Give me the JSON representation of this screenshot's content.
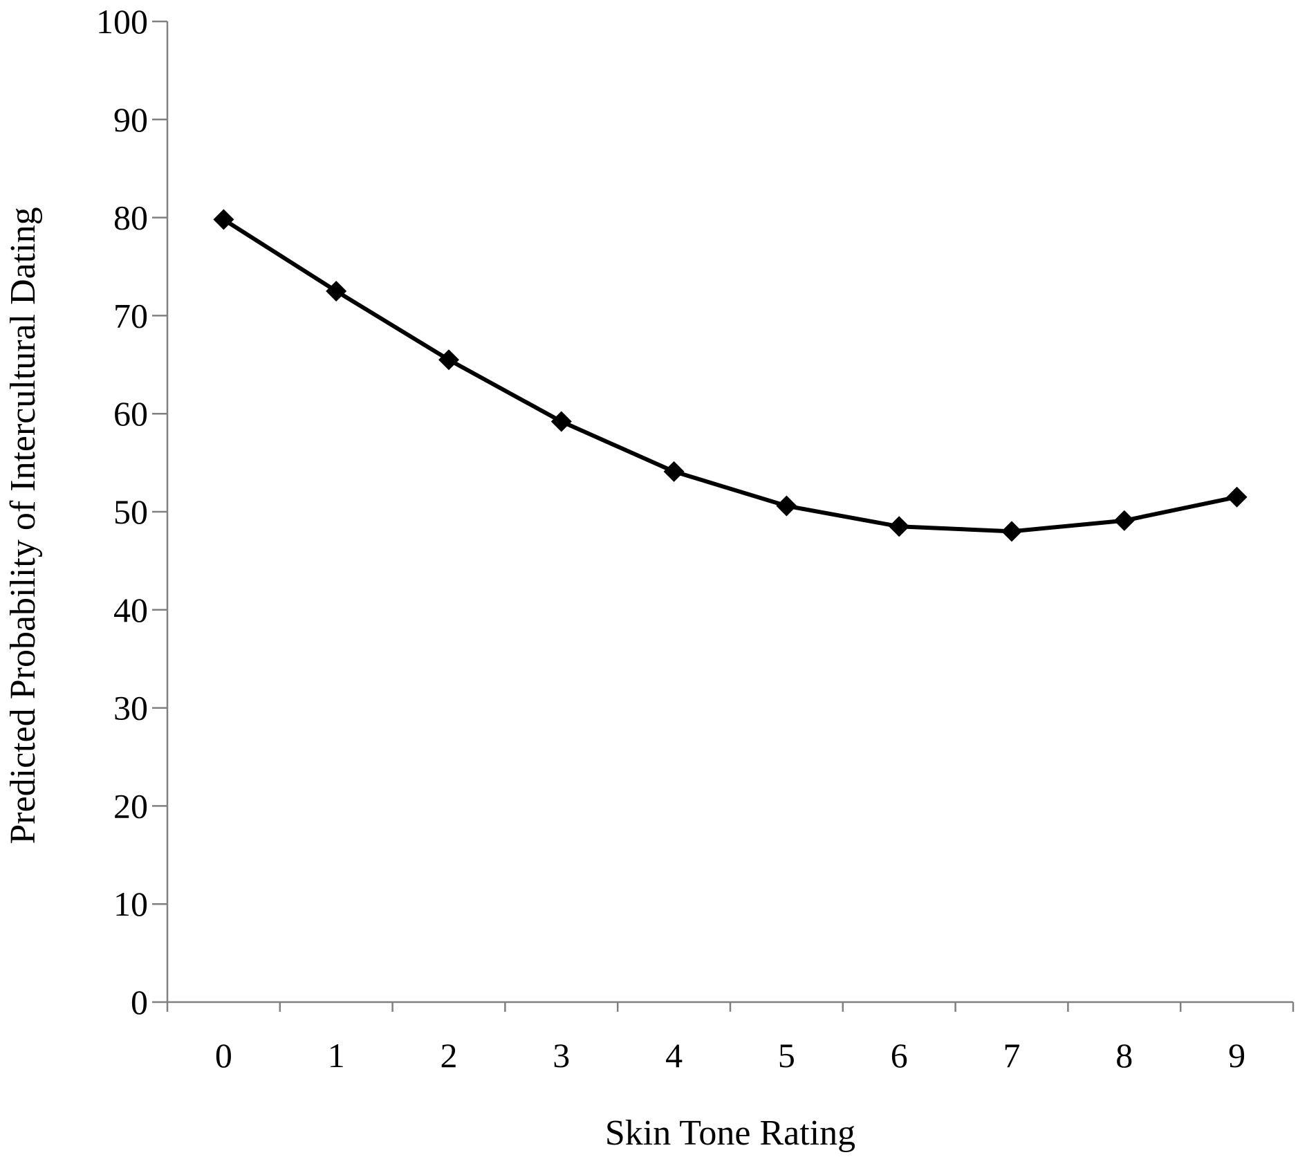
{
  "chart_data": {
    "type": "line",
    "title": "",
    "xlabel": "Skin Tone Rating",
    "ylabel": "Predicted Probability of Intercultural Dating",
    "x": [
      "0",
      "1",
      "2",
      "3",
      "4",
      "5",
      "6",
      "7",
      "8",
      "9"
    ],
    "series": [
      {
        "values": [
          79.8,
          72.5,
          65.5,
          59.2,
          54.1,
          50.6,
          48.5,
          48.0,
          49.1,
          51.5
        ],
        "color": "#000000",
        "marker": "diamond"
      }
    ],
    "ylim": [
      0,
      100
    ],
    "yticks": [
      "0",
      "10",
      "20",
      "30",
      "40",
      "50",
      "60",
      "70",
      "80",
      "90",
      "100"
    ],
    "grid": false,
    "legend": "none"
  }
}
